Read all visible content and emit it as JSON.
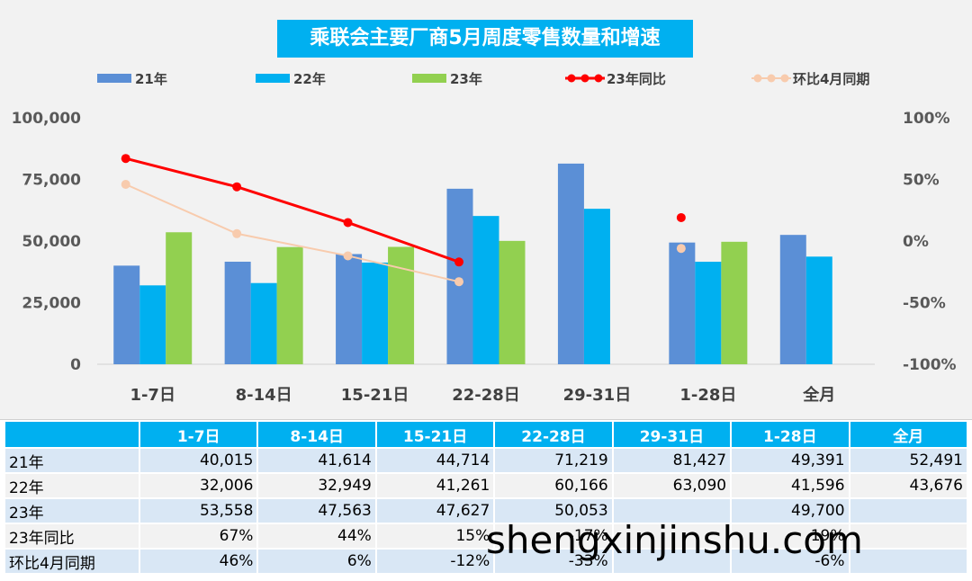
{
  "chart_data": {
    "type": "bar",
    "title": "乘联会主要厂商5月周度零售数量和增速",
    "categories": [
      "1-7日",
      "8-14日",
      "15-21日",
      "22-28日",
      "29-31日",
      "1-28日",
      "全月"
    ],
    "series": [
      {
        "name": "21年",
        "type": "bar",
        "axis": "left",
        "color": "#5b8fd6",
        "values": [
          40015,
          41614,
          44714,
          71219,
          81427,
          49391,
          52491
        ]
      },
      {
        "name": "22年",
        "type": "bar",
        "axis": "left",
        "color": "#00b0f0",
        "values": [
          32006,
          32949,
          41261,
          60166,
          63090,
          41596,
          43676
        ]
      },
      {
        "name": "23年",
        "type": "bar",
        "axis": "left",
        "color": "#92d050",
        "values": [
          53558,
          47563,
          47627,
          50053,
          null,
          49700,
          null
        ]
      },
      {
        "name": "23年同比",
        "type": "line",
        "axis": "right",
        "color": "#ff0000",
        "values": [
          67,
          44,
          15,
          -17,
          null,
          19,
          null
        ]
      },
      {
        "name": "环比4月同期",
        "type": "line",
        "axis": "right",
        "color": "#f8cbad",
        "values": [
          46,
          6,
          -12,
          -33,
          null,
          -6,
          null
        ]
      }
    ],
    "left_axis": {
      "range": [
        0,
        100000
      ],
      "ticks": [
        "0",
        "25,000",
        "50,000",
        "75,000",
        "100,000"
      ]
    },
    "right_axis": {
      "range": [
        -100,
        100
      ],
      "ticks": [
        "-100%",
        "-50%",
        "0%",
        "50%",
        "100%"
      ]
    },
    "legend_position": "top",
    "grid": false
  },
  "table": {
    "headers": [
      "",
      "1-7日",
      "8-14日",
      "15-21日",
      "22-28日",
      "29-31日",
      "1-28日",
      "全月"
    ],
    "rows": [
      {
        "label": "21年",
        "cells": [
          "40,015",
          "41,614",
          "44,714",
          "71,219",
          "81,427",
          "49,391",
          "52,491"
        ]
      },
      {
        "label": "22年",
        "cells": [
          "32,006",
          "32,949",
          "41,261",
          "60,166",
          "63,090",
          "41,596",
          "43,676"
        ]
      },
      {
        "label": "23年",
        "cells": [
          "53,558",
          "47,563",
          "47,627",
          "50,053",
          "",
          "49,700",
          ""
        ]
      },
      {
        "label": "23年同比",
        "cells": [
          "67%",
          "44%",
          "15%",
          "-17%",
          "",
          "19%",
          ""
        ]
      },
      {
        "label": "环比4月同期",
        "cells": [
          "46%",
          "6%",
          "-12%",
          "-33%",
          "",
          "-6%",
          ""
        ]
      }
    ]
  },
  "watermark": "shengxinjinshu.com"
}
